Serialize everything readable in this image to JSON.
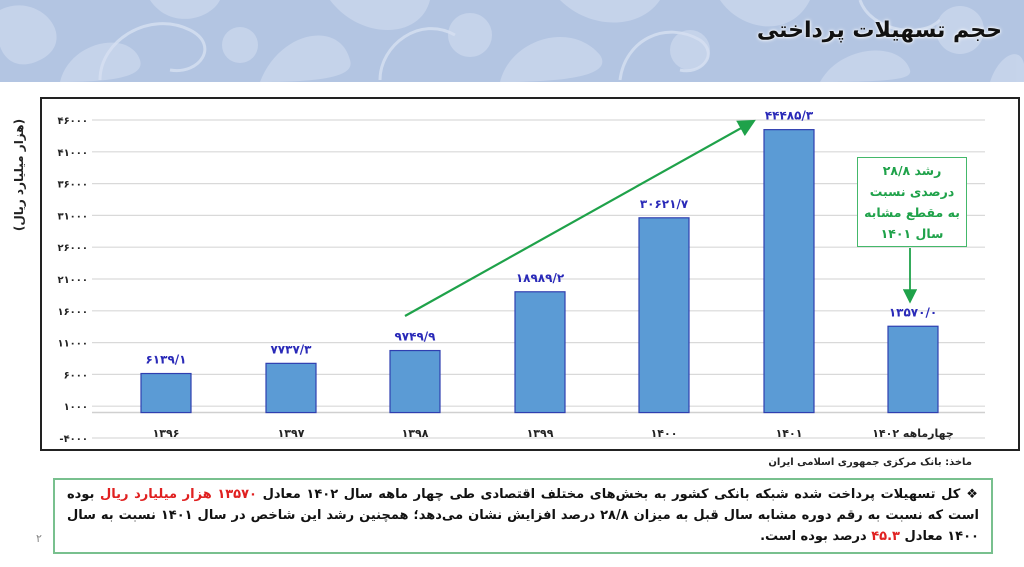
{
  "header": {
    "title": "حجم تسهیلات پرداختی"
  },
  "chart_data": {
    "type": "bar",
    "title": "حجم تسهیلات پرداختی",
    "xlabel": "",
    "ylabel": "(هزار میلیارد ریال)",
    "categories": [
      "۱۳۹۶",
      "۱۳۹۷",
      "۱۳۹۸",
      "۱۳۹۹",
      "۱۴۰۰",
      "۱۴۰۱",
      "چهارماهه ۱۴۰۲"
    ],
    "values": [
      6139.1,
      7737.3,
      9749.9,
      18989.2,
      30621.7,
      44485.3,
      13570.0
    ],
    "value_labels": [
      "۶۱۳۹/۱",
      "۷۷۳۷/۳",
      "۹۷۴۹/۹",
      "۱۸۹۸۹/۲",
      "۳۰۶۲۱/۷",
      "۴۴۴۸۵/۳",
      "۱۳۵۷۰/۰"
    ],
    "yticks": [
      -4000,
      1000,
      6000,
      11000,
      16000,
      21000,
      26000,
      31000,
      36000,
      41000,
      46000
    ],
    "ytick_labels": [
      "-۴۰۰۰",
      "۱۰۰۰",
      "۶۰۰۰",
      "۱۱۰۰۰",
      "۱۶۰۰۰",
      "۲۱۰۰۰",
      "۲۶۰۰۰",
      "۳۱۰۰۰",
      "۳۶۰۰۰",
      "۴۱۰۰۰",
      "۴۶۰۰۰"
    ],
    "ylim": [
      -4000,
      46000
    ],
    "grid": true,
    "legend": null,
    "bar_color": "#5b9bd5",
    "annotations": [
      {
        "type": "arrow",
        "from_category": "۱۳۹۸",
        "to_category": "۱۴۰۱",
        "color": "#1fa24a"
      },
      {
        "type": "callout",
        "text_lines": [
          "رشد ۲۸/۸",
          "درصدی نسبت",
          "به مقطع مشابه",
          "سال ۱۴۰۱"
        ],
        "points_to": "چهارماهه ۱۴۰۲",
        "color": "#1fa24a"
      }
    ]
  },
  "source": "ماخذ: بانک مرکزی جمهوری اسلامی ایران",
  "note": {
    "bullet": "❖",
    "part1": "کل تسهیلات پرداخت شده شبکه بانکی کشور به بخش‌های مختلف اقتصادی طی چهار ماهه سال ۱۴۰۲ معادل ",
    "highlight1": "۱۳۵۷۰ هزار میلیارد ریال",
    "part2": " بوده است که نسبت به رقم دوره مشابه سال قبل به میزان ۲۸/۸ درصد افزایش نشان می‌دهد؛ همچنین رشد این شاخص در سال ۱۴۰۱ نسبت به سال ۱۴۰۰ معادل ",
    "highlight2": "۴۵.۳",
    "part3": " درصد بوده است."
  },
  "page_number": "۲",
  "colors": {
    "header_bg": "#b3c5e2",
    "bar": "#5b9bd5",
    "bar_border": "#2f3fb0",
    "value_label": "#2a2ab8",
    "arrow": "#1fa24a",
    "note_border": "#78c08e",
    "highlight": "#e02020"
  }
}
